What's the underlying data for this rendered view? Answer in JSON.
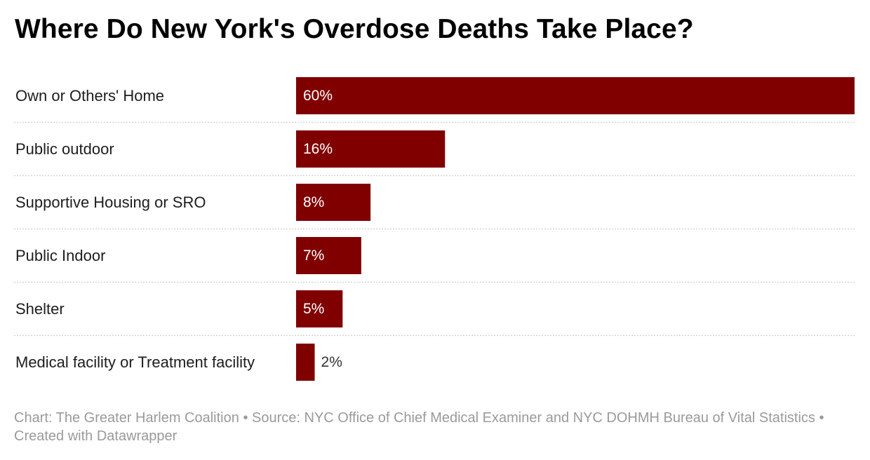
{
  "title": "Where Do New York's Overdose Deaths Take Place?",
  "chart_data": {
    "type": "bar",
    "orientation": "horizontal",
    "categories": [
      "Own or Others' Home",
      "Public outdoor",
      "Supportive Housing or SRO",
      "Public Indoor",
      "Shelter",
      "Medical facility or Treatment facility"
    ],
    "values": [
      60,
      16,
      8,
      7,
      5,
      2
    ],
    "value_labels": [
      "60%",
      "16%",
      "8%",
      "7%",
      "5%",
      "2%"
    ],
    "unit": "%",
    "xlim": [
      0,
      60
    ],
    "bar_color": "#800000",
    "grid": false
  },
  "footer": {
    "credit": "Chart: The Greater Harlem Coalition",
    "separator": "•",
    "source": "Source: NYC Office of Chief Medical Examiner and NYC DOHMH Bureau of Vital Statistics",
    "tool": "Created with Datawrapper"
  }
}
